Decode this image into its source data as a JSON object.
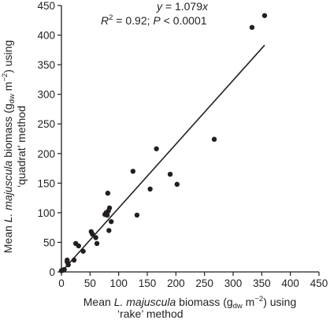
{
  "chart_data": {
    "type": "scatter",
    "xlabel": "Mean L. majuscula biomass (g_dw m^-2) using 'rake' method",
    "ylabel": "Mean L. majuscula biomass (g_dw m^-2) using 'quadrat' method",
    "xlim": [
      0,
      450
    ],
    "ylim": [
      0,
      450
    ],
    "xticks": [
      0,
      50,
      100,
      150,
      200,
      250,
      300,
      350,
      400,
      450
    ],
    "yticks": [
      0,
      50,
      100,
      150,
      200,
      250,
      300,
      350,
      400,
      450
    ],
    "grid": false,
    "annotation_line1": "y = 1.079x",
    "annotation_line2": "R² = 0.92; P < 0.0001",
    "fit": {
      "slope": 1.079,
      "x_start": 0,
      "x_end": 355
    },
    "points": [
      {
        "x": 0,
        "y": 2
      },
      {
        "x": 2,
        "y": 3
      },
      {
        "x": 5,
        "y": 4
      },
      {
        "x": 10,
        "y": 17
      },
      {
        "x": 10,
        "y": 20
      },
      {
        "x": 12,
        "y": 12
      },
      {
        "x": 22,
        "y": 20
      },
      {
        "x": 25,
        "y": 48
      },
      {
        "x": 30,
        "y": 44
      },
      {
        "x": 38,
        "y": 35
      },
      {
        "x": 52,
        "y": 68
      },
      {
        "x": 54,
        "y": 64
      },
      {
        "x": 60,
        "y": 58
      },
      {
        "x": 62,
        "y": 48
      },
      {
        "x": 76,
        "y": 97
      },
      {
        "x": 78,
        "y": 100
      },
      {
        "x": 80,
        "y": 96
      },
      {
        "x": 81,
        "y": 133
      },
      {
        "x": 82,
        "y": 103
      },
      {
        "x": 83,
        "y": 70
      },
      {
        "x": 84,
        "y": 108
      },
      {
        "x": 87,
        "y": 85
      },
      {
        "x": 125,
        "y": 170
      },
      {
        "x": 132,
        "y": 96
      },
      {
        "x": 155,
        "y": 140
      },
      {
        "x": 166,
        "y": 208
      },
      {
        "x": 190,
        "y": 165
      },
      {
        "x": 202,
        "y": 148
      },
      {
        "x": 267,
        "y": 224
      },
      {
        "x": 333,
        "y": 413
      },
      {
        "x": 355,
        "y": 433
      }
    ]
  },
  "labels": {
    "y_title_line1_a": "Mean ",
    "y_title_line1_species": "L. majuscula",
    "y_title_line1_b": " biomass (g",
    "y_title_line1_sub": "dw",
    "y_title_line1_c": " m",
    "y_title_line1_sup": "−2",
    "y_title_line1_d": ") using",
    "y_title_line2": "‘quadrat’ method",
    "x_title_line1_a": "Mean ",
    "x_title_line1_species": "L. majuscula",
    "x_title_line1_b": " biomass (g",
    "x_title_line1_sub": "dw",
    "x_title_line1_c": " m",
    "x_title_line1_sup": "−2",
    "x_title_line1_d": ") using",
    "x_title_line2": "‘rake’ method",
    "eq_y": "y",
    "eq_rest": " = 1.079",
    "eq_x": "x",
    "r2_R": "R",
    "r2_sup": "2",
    "r2_rest": " = 0.92; ",
    "r2_P": "P",
    "r2_tail": " < 0.0001"
  }
}
